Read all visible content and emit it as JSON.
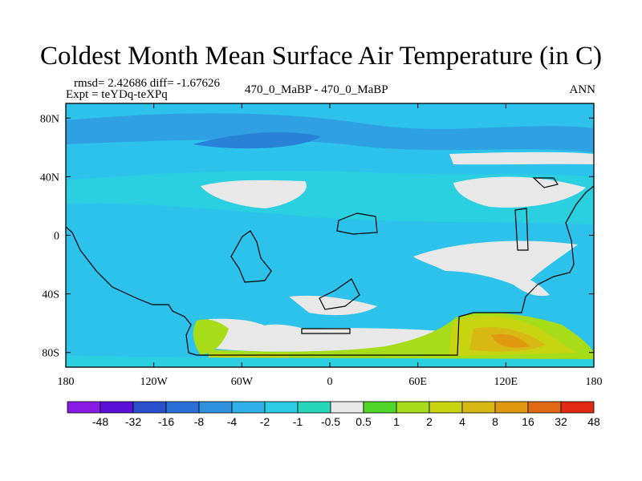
{
  "header": {
    "title": "Coldest Month Mean Surface Air Temperature (in C)",
    "stats": "rmsd= 2.42686 diff= -1.67626",
    "expt": "Expt = teYDq-teXPq",
    "experiment_diff": "470_0_MaBP - 470_0_MaBP",
    "season": "ANN"
  },
  "chart_data": {
    "type": "heatmap",
    "title": "Coldest Month Mean Surface Air Temperature (in C)",
    "xlabel": "",
    "ylabel": "",
    "xlim": [
      -180,
      180
    ],
    "ylim": [
      -90,
      90
    ],
    "x_ticks": [
      {
        "value": -180,
        "label": "180"
      },
      {
        "value": -120,
        "label": "120W"
      },
      {
        "value": -60,
        "label": "60W"
      },
      {
        "value": 0,
        "label": "0"
      },
      {
        "value": 60,
        "label": "60E"
      },
      {
        "value": 120,
        "label": "120E"
      },
      {
        "value": 180,
        "label": "180"
      }
    ],
    "y_ticks": [
      {
        "value": 80,
        "label": "80N"
      },
      {
        "value": 40,
        "label": "40N"
      },
      {
        "value": 0,
        "label": "0"
      },
      {
        "value": -40,
        "label": "40S"
      },
      {
        "value": -80,
        "label": "80S"
      }
    ],
    "colorbar": {
      "colors": [
        "#8a1ae6",
        "#5a0fd9",
        "#2a50d0",
        "#2a6fd6",
        "#2f92e0",
        "#2fb0e8",
        "#2ccde4",
        "#26d6b8",
        "#e8e8e8",
        "#4fd628",
        "#a6dc18",
        "#c8d412",
        "#d8b812",
        "#e09810",
        "#e06a12",
        "#e02a14"
      ],
      "levels": [
        "-48",
        "-32",
        "-16",
        "-8",
        "-4",
        "-2",
        "-1",
        "-0.5",
        "0.5",
        "1",
        "2",
        "4",
        "8",
        "16",
        "32",
        "48"
      ]
    },
    "background_color": "#2cc2ec"
  }
}
